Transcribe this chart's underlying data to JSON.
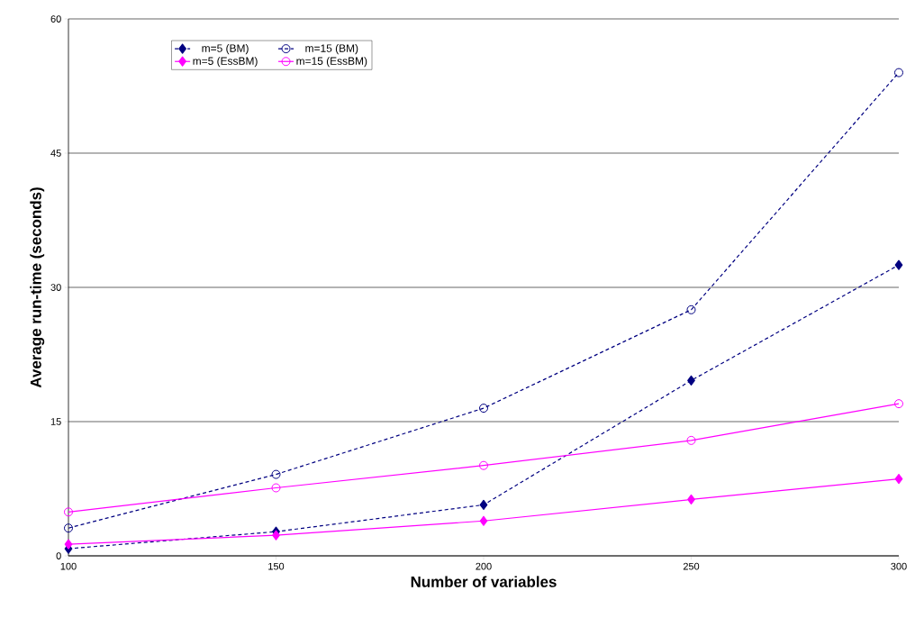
{
  "chart_data": {
    "type": "line",
    "xlabel": "Number of variables",
    "ylabel": "Average run-time (seconds)",
    "x": [
      100,
      150,
      200,
      250,
      300
    ],
    "series": [
      {
        "name": "m=5 (BM)",
        "color": "#000080",
        "marker": "diamond",
        "line_style": "dashed",
        "values": [
          0.8,
          2.7,
          5.7,
          19.6,
          32.5
        ]
      },
      {
        "name": "m=15 (BM)",
        "color": "#000080",
        "marker": "circle",
        "line_style": "dashed",
        "values": [
          3.1,
          9.1,
          16.5,
          27.5,
          54.0
        ]
      },
      {
        "name": "m=5 (EssBM)",
        "color": "#ff00ff",
        "marker": "diamond",
        "line_style": "solid",
        "values": [
          1.3,
          2.3,
          3.9,
          6.3,
          8.6
        ]
      },
      {
        "name": "m=15 (EssBM)",
        "color": "#ff00ff",
        "marker": "circle",
        "line_style": "solid",
        "values": [
          4.9,
          7.6,
          10.1,
          12.9,
          17.0
        ]
      }
    ],
    "xlim": [
      100,
      300
    ],
    "xticks": [
      100,
      150,
      200,
      250,
      300
    ],
    "ylim": [
      0,
      60
    ],
    "yticks": [
      0,
      15,
      30,
      45,
      60
    ],
    "grid": "y",
    "legend": "top left"
  }
}
